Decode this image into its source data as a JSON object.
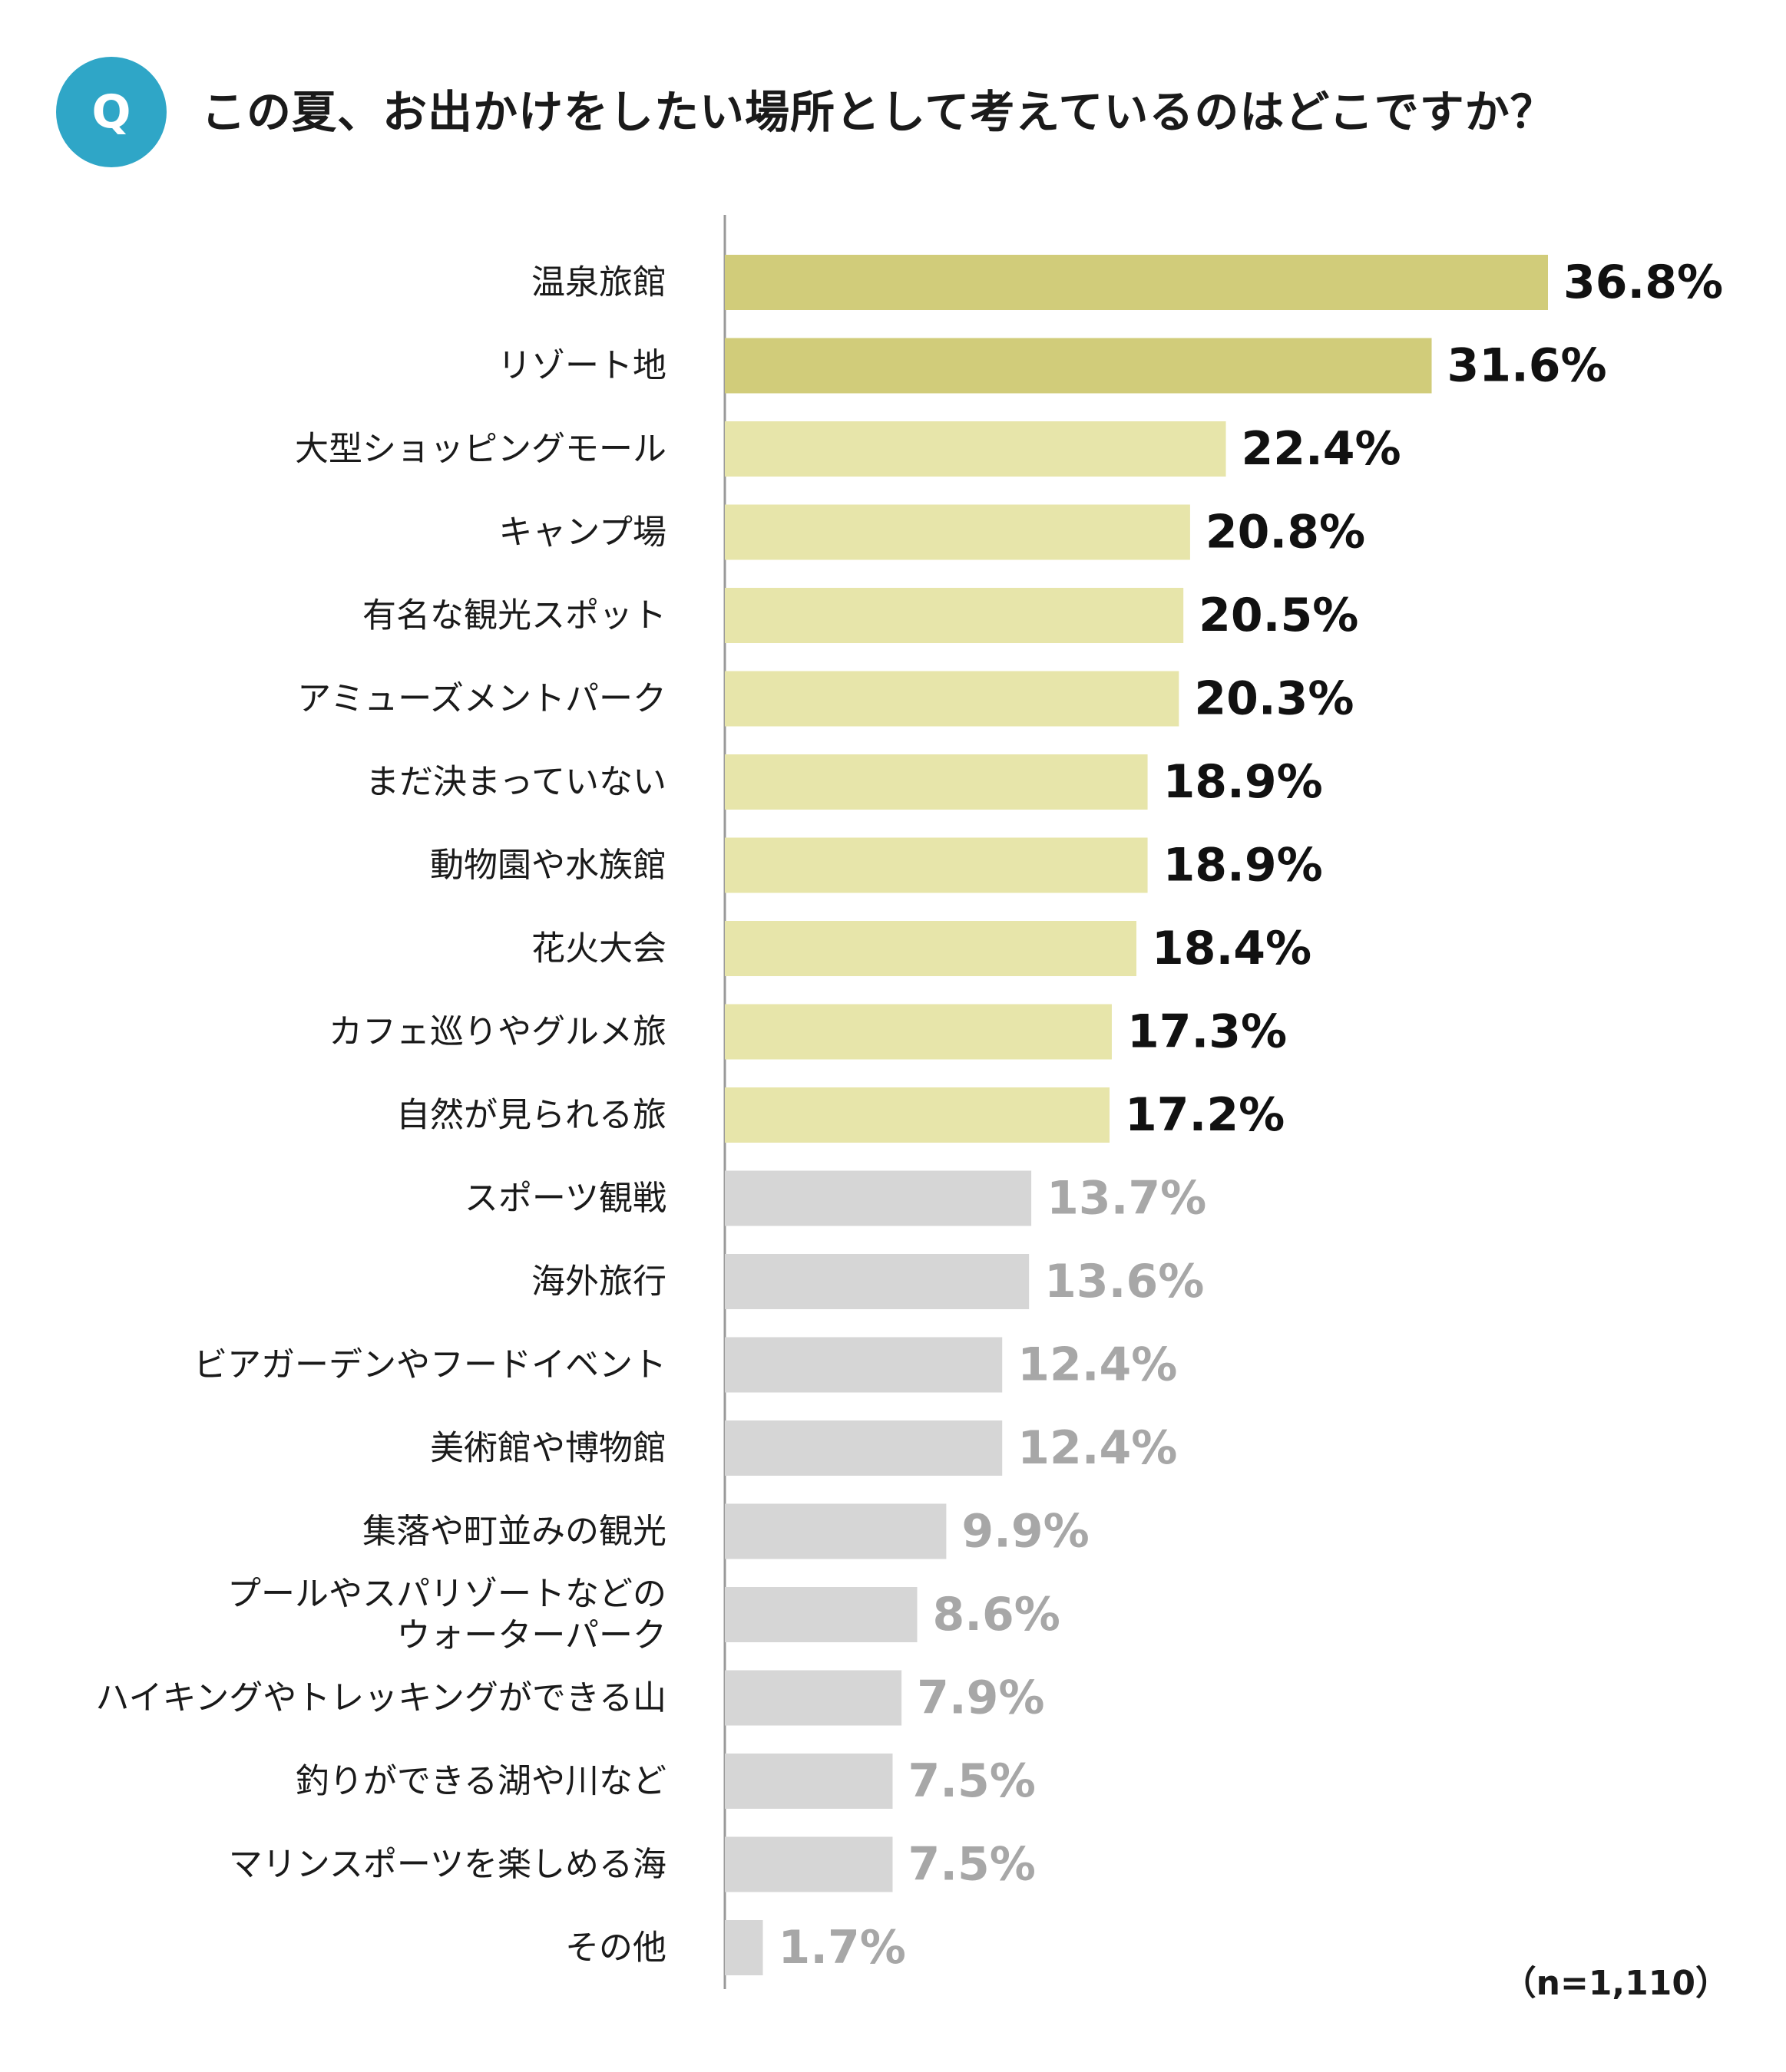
{
  "question": {
    "badge": "Q",
    "text": "この夏、お出かけをしたい場所として考えているのはどこですか？"
  },
  "note": "（n=1,110）",
  "colors": {
    "top": "#d1cc7a",
    "mid": "#e7e5aa",
    "low": "#d6d6d6",
    "label_dark": "#111111",
    "label_gray": "#a7a7a7",
    "axis": "#999999"
  },
  "chart_data": {
    "type": "bar",
    "orientation": "horizontal",
    "title": "この夏、お出かけをしたい場所として考えているのはどこですか？",
    "unit": "%",
    "categories": [
      "温泉旅館",
      "リゾート地",
      "大型ショッピングモール",
      "キャンプ場",
      "有名な観光スポット",
      "アミューズメントパーク",
      "まだ決まっていない",
      "動物園や水族館",
      "花火大会",
      "カフェ巡りやグルメ旅",
      "自然が見られる旅",
      "スポーツ観戦",
      "海外旅行",
      "ビアガーデンやフードイベント",
      "美術館や博物館",
      "集落や町並みの観光",
      "プールやスパリゾートなどの\nウォーターパーク",
      "ハイキングやトレッキングができる山",
      "釣りができる湖や川など",
      "マリンスポーツを楽しめる海",
      "その他"
    ],
    "values": [
      36.8,
      31.6,
      22.4,
      20.8,
      20.5,
      20.3,
      18.9,
      18.9,
      18.4,
      17.3,
      17.2,
      13.7,
      13.6,
      12.4,
      12.4,
      9.9,
      8.6,
      7.9,
      7.5,
      7.5,
      1.7
    ],
    "value_labels": [
      "36.8%",
      "31.6%",
      "22.4%",
      "20.8%",
      "20.5%",
      "20.3%",
      "18.9%",
      "18.9%",
      "18.4%",
      "17.3%",
      "17.2%",
      "13.7%",
      "13.6%",
      "12.4%",
      "12.4%",
      "9.9%",
      "8.6%",
      "7.9%",
      "7.5%",
      "7.5%",
      "1.7%"
    ],
    "tiers": [
      "top",
      "top",
      "mid",
      "mid",
      "mid",
      "mid",
      "mid",
      "mid",
      "mid",
      "mid",
      "mid",
      "low",
      "low",
      "low",
      "low",
      "low",
      "low",
      "low",
      "low",
      "low",
      "low"
    ],
    "xlim": [
      0,
      40
    ],
    "grid": false
  }
}
